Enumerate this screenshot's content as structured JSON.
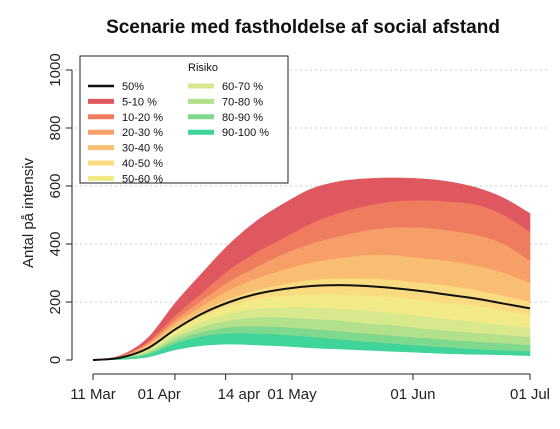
{
  "chart_data": {
    "type": "area",
    "title": "Scenarie med fastholdelse af social afstand",
    "ylabel": "Antal på intensiv",
    "xlabel": "",
    "ylim": [
      0,
      1000
    ],
    "yticks": [
      0,
      200,
      400,
      600,
      800,
      1000
    ],
    "xtick_labels": [
      "11 Mar",
      "01 Apr",
      "14 apr",
      "01 May",
      "01 Jun",
      "01 Jul"
    ],
    "xtick_days": [
      0,
      21,
      34,
      51,
      82,
      112
    ],
    "grid": "horizontal dotted",
    "legend": {
      "title": "Risiko",
      "placement": "top-left",
      "entries": [
        {
          "label": "50%",
          "color": "#111111",
          "kind": "line"
        },
        {
          "label": "5-10 %",
          "color": "#e0585f",
          "kind": "fill"
        },
        {
          "label": "10-20 %",
          "color": "#ef7c5e",
          "kind": "fill"
        },
        {
          "label": "20-30 %",
          "color": "#f6a068",
          "kind": "fill"
        },
        {
          "label": "30-40 %",
          "color": "#f9be73",
          "kind": "fill"
        },
        {
          "label": "40-50 %",
          "color": "#fbdb81",
          "kind": "fill"
        },
        {
          "label": "50-60 %",
          "color": "#f2ea88",
          "kind": "fill"
        },
        {
          "label": "60-70 %",
          "color": "#d8e88d",
          "kind": "fill"
        },
        {
          "label": "70-80 %",
          "color": "#b3e08b",
          "kind": "fill"
        },
        {
          "label": "80-90 %",
          "color": "#7ed88d",
          "kind": "fill"
        },
        {
          "label": "90-100 %",
          "color": "#3fd49a",
          "kind": "fill"
        }
      ]
    },
    "x_days": [
      0,
      7,
      14,
      21,
      28,
      35,
      42,
      49,
      56,
      63,
      70,
      77,
      84,
      91,
      98,
      105,
      112
    ],
    "bands": [
      {
        "name": "5-10 %",
        "color": "#e0585f",
        "lower": [
          0,
          12,
          60,
          150,
          230,
          310,
          370,
          420,
          470,
          505,
          530,
          545,
          550,
          545,
          535,
          500,
          440
        ],
        "upper": [
          0,
          15,
          75,
          195,
          300,
          400,
          480,
          540,
          590,
          615,
          625,
          628,
          625,
          615,
          595,
          560,
          505
        ]
      },
      {
        "name": "10-20 %",
        "color": "#ef7c5e",
        "lower": [
          0,
          11,
          55,
          135,
          205,
          270,
          320,
          365,
          400,
          425,
          445,
          455,
          455,
          445,
          430,
          400,
          340
        ],
        "upper": [
          0,
          12,
          60,
          150,
          230,
          310,
          370,
          420,
          470,
          505,
          530,
          545,
          550,
          545,
          535,
          500,
          440
        ]
      },
      {
        "name": "20-30 %",
        "color": "#f6a068",
        "lower": [
          0,
          10,
          50,
          125,
          185,
          240,
          280,
          310,
          335,
          350,
          360,
          360,
          350,
          340,
          325,
          300,
          265
        ],
        "upper": [
          0,
          11,
          55,
          135,
          205,
          270,
          320,
          365,
          400,
          425,
          445,
          455,
          455,
          445,
          430,
          400,
          340
        ]
      },
      {
        "name": "30-40 %",
        "color": "#f9be73",
        "lower": [
          0,
          9,
          44,
          112,
          165,
          210,
          240,
          260,
          275,
          280,
          280,
          275,
          265,
          255,
          240,
          220,
          200
        ],
        "upper": [
          0,
          10,
          50,
          125,
          185,
          240,
          280,
          310,
          335,
          350,
          360,
          360,
          350,
          340,
          325,
          300,
          265
        ]
      },
      {
        "name": "40-50 %",
        "color": "#fbdb81",
        "lower": [
          0,
          8,
          38,
          100,
          150,
          185,
          210,
          220,
          225,
          225,
          220,
          215,
          205,
          195,
          185,
          170,
          155
        ],
        "upper": [
          0,
          9,
          44,
          112,
          165,
          210,
          240,
          260,
          275,
          280,
          280,
          275,
          265,
          255,
          240,
          220,
          200
        ]
      },
      {
        "name": "50-60 %",
        "color": "#f2ea88",
        "lower": [
          0,
          7,
          32,
          88,
          130,
          160,
          175,
          180,
          180,
          175,
          170,
          160,
          150,
          140,
          130,
          120,
          110
        ],
        "upper": [
          0,
          8,
          38,
          100,
          150,
          185,
          210,
          220,
          225,
          225,
          220,
          215,
          205,
          195,
          185,
          170,
          155
        ]
      },
      {
        "name": "60-70 %",
        "color": "#d8e88d",
        "lower": [
          0,
          6,
          27,
          76,
          112,
          135,
          145,
          145,
          140,
          135,
          125,
          118,
          108,
          100,
          92,
          85,
          78
        ],
        "upper": [
          0,
          7,
          32,
          88,
          130,
          160,
          175,
          180,
          180,
          175,
          170,
          160,
          150,
          140,
          130,
          120,
          110
        ]
      },
      {
        "name": "70-80 %",
        "color": "#b3e08b",
        "lower": [
          0,
          5,
          22,
          65,
          95,
          112,
          115,
          112,
          105,
          98,
          90,
          82,
          75,
          68,
          62,
          56,
          50
        ],
        "upper": [
          0,
          6,
          27,
          76,
          112,
          135,
          145,
          145,
          140,
          135,
          125,
          118,
          108,
          100,
          92,
          85,
          78
        ]
      },
      {
        "name": "80-90 %",
        "color": "#7ed88d",
        "lower": [
          0,
          4,
          18,
          55,
          80,
          90,
          90,
          85,
          78,
          70,
          62,
          55,
          48,
          42,
          36,
          32,
          28
        ],
        "upper": [
          0,
          5,
          22,
          65,
          95,
          112,
          115,
          112,
          105,
          98,
          90,
          82,
          75,
          68,
          62,
          56,
          50
        ]
      },
      {
        "name": "90-100 %",
        "color": "#3fd49a",
        "lower": [
          0,
          2,
          10,
          35,
          50,
          55,
          52,
          48,
          42,
          38,
          34,
          30,
          26,
          22,
          20,
          18,
          15
        ],
        "upper": [
          0,
          4,
          18,
          55,
          80,
          90,
          90,
          85,
          78,
          70,
          62,
          55,
          48,
          42,
          36,
          32,
          28
        ]
      }
    ],
    "median": {
      "name": "50%",
      "color": "#111111",
      "values": [
        0,
        8,
        40,
        105,
        160,
        200,
        228,
        245,
        255,
        258,
        255,
        248,
        238,
        225,
        212,
        195,
        178
      ]
    }
  }
}
